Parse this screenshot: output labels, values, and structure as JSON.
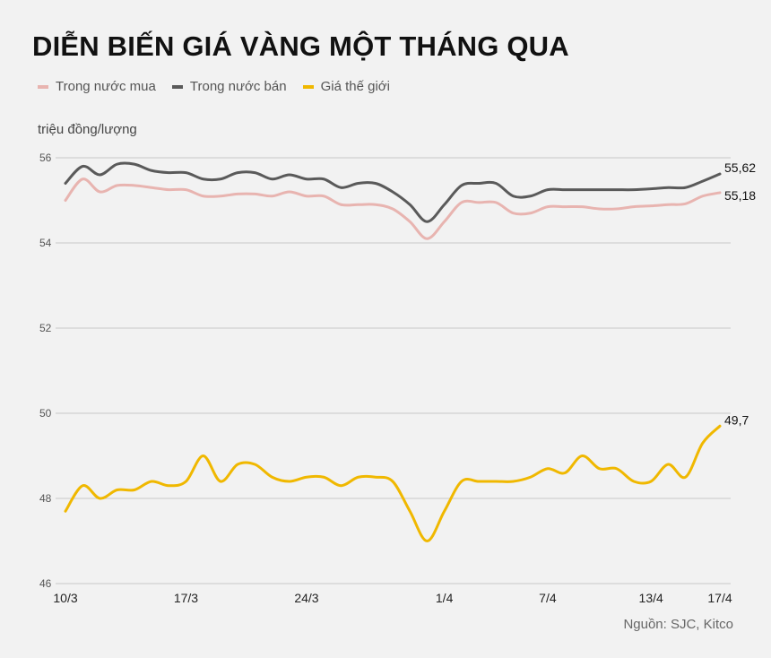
{
  "title": "DIỄN BIẾN GIÁ VÀNG MỘT THÁNG QUA",
  "source": "Nguồn: SJC, Kitco",
  "chart_data": {
    "type": "line",
    "title": "DIỄN BIẾN GIÁ VÀNG MỘT THÁNG QUA",
    "ylabel": "triệu đồng/lượng",
    "xlabel": "",
    "ylim": [
      46,
      56
    ],
    "yticks": [
      "46",
      "48",
      "50",
      "52",
      "54",
      "56"
    ],
    "xticks": [
      {
        "label": "10/3",
        "day": 0
      },
      {
        "label": "17/3",
        "day": 7
      },
      {
        "label": "24/3",
        "day": 14
      },
      {
        "label": "1/4",
        "day": 22
      },
      {
        "label": "7/4",
        "day": 28
      },
      {
        "label": "13/4",
        "day": 34
      },
      {
        "label": "17/4",
        "day": 38
      }
    ],
    "grid": true,
    "legend_position": "top-left",
    "series": [
      {
        "name": "Trong nước mua",
        "color": "#e8b4b0",
        "end_label": "55,18",
        "values": [
          55.0,
          55.5,
          55.2,
          55.35,
          55.35,
          55.3,
          55.25,
          55.25,
          55.1,
          55.1,
          55.15,
          55.15,
          55.1,
          55.2,
          55.1,
          55.1,
          54.9,
          54.9,
          54.9,
          54.8,
          54.5,
          54.1,
          54.5,
          54.95,
          54.95,
          54.95,
          54.7,
          54.7,
          54.85,
          54.85,
          54.85,
          54.8,
          54.8,
          54.85,
          54.87,
          54.9,
          54.92,
          55.1,
          55.18
        ]
      },
      {
        "name": "Trong nước bán",
        "color": "#5a5a5a",
        "end_label": "55,62",
        "values": [
          55.4,
          55.8,
          55.6,
          55.85,
          55.85,
          55.7,
          55.65,
          55.65,
          55.5,
          55.5,
          55.65,
          55.65,
          55.5,
          55.6,
          55.5,
          55.5,
          55.3,
          55.4,
          55.4,
          55.2,
          54.9,
          54.5,
          54.9,
          55.35,
          55.4,
          55.4,
          55.1,
          55.1,
          55.25,
          55.25,
          55.25,
          55.25,
          55.25,
          55.25,
          55.27,
          55.3,
          55.3,
          55.45,
          55.62
        ]
      },
      {
        "name": "Giá thế giới",
        "color": "#f0b800",
        "end_label": "49,7",
        "values": [
          47.7,
          48.3,
          48.0,
          48.2,
          48.2,
          48.4,
          48.3,
          48.4,
          49.0,
          48.4,
          48.8,
          48.8,
          48.5,
          48.4,
          48.5,
          48.5,
          48.3,
          48.5,
          48.5,
          48.4,
          47.7,
          47.0,
          47.7,
          48.4,
          48.4,
          48.4,
          48.4,
          48.5,
          48.7,
          48.6,
          49.0,
          48.7,
          48.7,
          48.4,
          48.4,
          48.8,
          48.5,
          49.3,
          49.7
        ]
      }
    ]
  }
}
